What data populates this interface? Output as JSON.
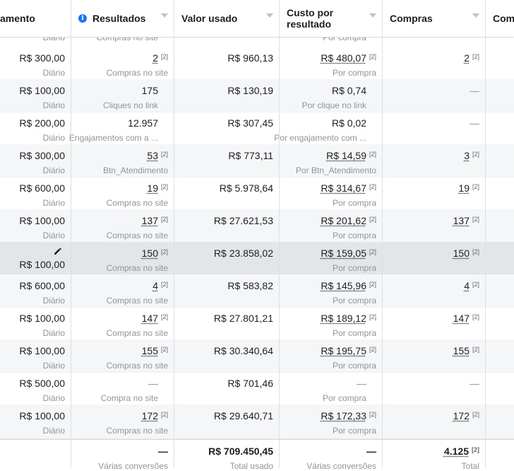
{
  "headers": {
    "budget": "amento",
    "results": "Resultados",
    "spent": "Valor usado",
    "cost_line1": "Custo por",
    "cost_line2": "resultado",
    "purchases": "Compras",
    "extra": "Com"
  },
  "top_partial": {
    "budget_sub": "Diário",
    "results_sub": "Compras no site",
    "cost_sub": "Por compra"
  },
  "rows": [
    {
      "budget": "R$ 300,00",
      "budget_sub": "Diário",
      "results": "2",
      "results_sup": "[2]",
      "results_sub": "Compras no site",
      "spent": "R$ 960,13",
      "cost": "R$ 480,07",
      "cost_sup": "[2]",
      "cost_sub": "Por compra",
      "purchases": "2",
      "purchases_sup": "[2]"
    },
    {
      "budget": "R$ 100,00",
      "budget_sub": "Diário",
      "results": "175",
      "results_sup": "",
      "results_sub": "Cliques no link",
      "spent": "R$ 130,19",
      "cost": "R$ 0,74",
      "cost_sup": "",
      "cost_sub": "Por clique no link",
      "purchases": "—",
      "purchases_sup": ""
    },
    {
      "budget": "R$ 200,00",
      "budget_sub": "Diário",
      "results": "12.957",
      "results_sup": "",
      "results_sub": "Engajamentos com a ...",
      "spent": "R$ 307,45",
      "cost": "R$ 0,02",
      "cost_sup": "",
      "cost_sub": "Por engajamento com ...",
      "purchases": "—",
      "purchases_sup": ""
    },
    {
      "budget": "R$ 300,00",
      "budget_sub": "Diário",
      "results": "53",
      "results_sup": "[2]",
      "results_sub": "Btn_Atendimento",
      "spent": "R$ 773,11",
      "cost": "R$ 14,59",
      "cost_sup": "[2]",
      "cost_sub": "Por Btn_Atendimento",
      "purchases": "3",
      "purchases_sup": "[2]"
    },
    {
      "budget": "R$ 600,00",
      "budget_sub": "Diário",
      "results": "19",
      "results_sup": "[2]",
      "results_sub": "Compras no site",
      "spent": "R$ 5.978,64",
      "cost": "R$ 314,67",
      "cost_sup": "[2]",
      "cost_sub": "Por compra",
      "purchases": "19",
      "purchases_sup": "[2]"
    },
    {
      "budget": "R$ 100,00",
      "budget_sub": "Diário",
      "results": "137",
      "results_sup": "[2]",
      "results_sub": "Compras no site",
      "spent": "R$ 27.621,53",
      "cost": "R$ 201,62",
      "cost_sup": "[2]",
      "cost_sub": "Por compra",
      "purchases": "137",
      "purchases_sup": "[2]"
    },
    {
      "budget": "R$ 100,00",
      "budget_sub": "",
      "results": "150",
      "results_sup": "[2]",
      "results_sub": "Compras no site",
      "spent": "R$ 23.858,02",
      "cost": "R$ 159,05",
      "cost_sup": "[2]",
      "cost_sub": "Por compra",
      "purchases": "150",
      "purchases_sup": "[2]",
      "editing": true
    },
    {
      "budget": "R$ 600,00",
      "budget_sub": "Diário",
      "results": "4",
      "results_sup": "[2]",
      "results_sub": "Compras no site",
      "spent": "R$ 583,82",
      "cost": "R$ 145,96",
      "cost_sup": "[2]",
      "cost_sub": "Por compra",
      "purchases": "4",
      "purchases_sup": "[2]"
    },
    {
      "budget": "R$ 100,00",
      "budget_sub": "Diário",
      "results": "147",
      "results_sup": "[2]",
      "results_sub": "Compras no site",
      "spent": "R$ 27.801,21",
      "cost": "R$ 189,12",
      "cost_sup": "[2]",
      "cost_sub": "Por compra",
      "purchases": "147",
      "purchases_sup": "[2]"
    },
    {
      "budget": "R$ 100,00",
      "budget_sub": "Diário",
      "results": "155",
      "results_sup": "[2]",
      "results_sub": "Compras no site",
      "spent": "R$ 30.340,64",
      "cost": "R$ 195,75",
      "cost_sup": "[2]",
      "cost_sub": "Por compra",
      "purchases": "155",
      "purchases_sup": "[2]"
    },
    {
      "budget": "R$ 500,00",
      "budget_sub": "Diário",
      "results": "—",
      "results_sup": "",
      "results_sub": "Compra no site",
      "spent": "R$ 701,46",
      "cost": "—",
      "cost_sup": "",
      "cost_sub": "Por compra",
      "purchases": "—",
      "purchases_sup": ""
    },
    {
      "budget": "R$ 100,00",
      "budget_sub": "Diário",
      "results": "172",
      "results_sup": "[2]",
      "results_sub": "Compras no site",
      "spent": "R$ 29.640,71",
      "cost": "R$ 172,33",
      "cost_sup": "[2]",
      "cost_sub": "Por compra",
      "purchases": "172",
      "purchases_sup": "[2]"
    }
  ],
  "totals": {
    "results": "—",
    "results_sub": "Várias conversões",
    "spent": "R$ 709.450,45",
    "spent_sub": "Total usado",
    "cost": "—",
    "cost_sub": "Várias conversões",
    "purchases": "4.125",
    "purchases_sup": "[2]",
    "purchases_sub": "Total"
  },
  "icons": {
    "info": "info-icon",
    "sort": "caret-down-icon",
    "edit": "pencil-icon"
  }
}
